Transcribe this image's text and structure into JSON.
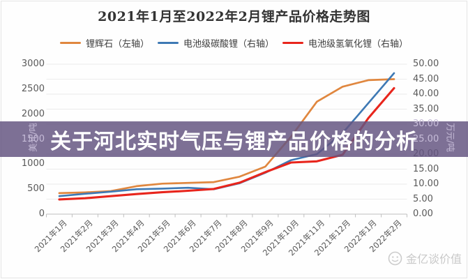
{
  "banner": {
    "text": "关于河北实时气压与锂产品价格的分析",
    "bg": "rgba(100,85,129,0.84)"
  },
  "watermark": {
    "text": "金亿谈价值"
  },
  "chart_data": {
    "type": "line",
    "title": "2021年1月至2022年2月锂产品价格走势图",
    "categories": [
      "2021年1月",
      "2021年2月",
      "2021年3月",
      "2021年4月",
      "2021年5月",
      "2021年6月",
      "2021年7月",
      "2021年8月",
      "2021年9月",
      "2021年10月",
      "2021年11月",
      "2021年12月",
      "2022年1月",
      "2022年2月"
    ],
    "series": [
      {
        "name": "锂辉石（左轴）",
        "axis": "left",
        "color": "#E0873F",
        "values": [
          420,
          435,
          460,
          560,
          610,
          625,
          640,
          750,
          950,
          1550,
          2250,
          2550,
          2680,
          2700
        ]
      },
      {
        "name": "电池级碳酸锂（右轴）",
        "axis": "right",
        "color": "#3E79B4",
        "values": [
          6.0,
          6.8,
          7.5,
          8.3,
          8.5,
          8.8,
          8.3,
          10.3,
          13.8,
          18.0,
          20.0,
          27.0,
          37.0,
          47.0
        ]
      },
      {
        "name": "电池级氢氧化锂（右轴）",
        "axis": "right",
        "color": "#E8251C",
        "values": [
          4.9,
          5.3,
          6.0,
          6.7,
          7.3,
          7.8,
          8.4,
          10.5,
          14.0,
          17.2,
          17.6,
          19.8,
          32.0,
          42.0
        ]
      }
    ],
    "left_axis": {
      "label": "美元/吨",
      "min": 0,
      "max": 3000,
      "step": 500,
      "decimals": 0
    },
    "right_axis": {
      "label": "万元/吨",
      "min": 0,
      "max": 50,
      "step": 5,
      "decimals": 2
    },
    "grid": true,
    "legend_position": "top"
  }
}
